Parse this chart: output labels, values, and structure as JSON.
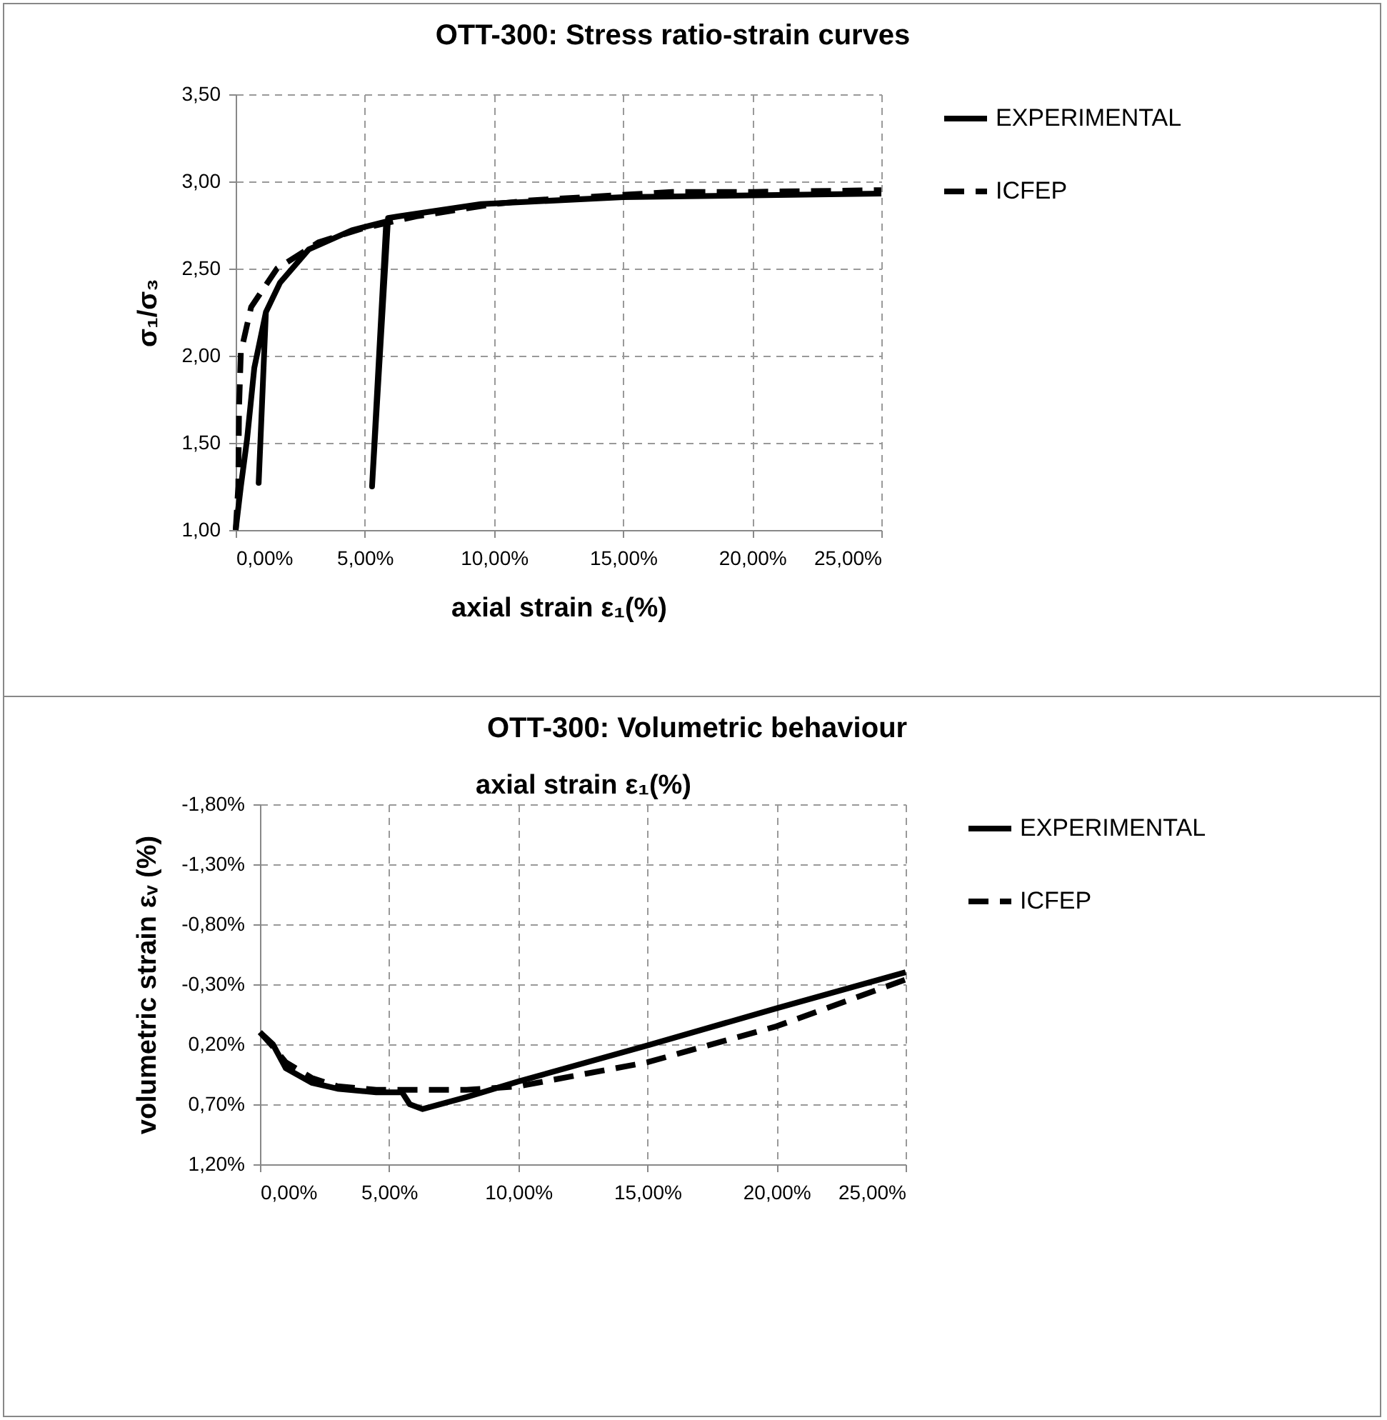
{
  "chart_data": [
    {
      "type": "line",
      "title": "OTT-300: Stress ratio-strain curves",
      "xlabel": "axial strain ε₁(%)",
      "ylabel": "σ₁/σ₃",
      "xlim": [
        0,
        25
      ],
      "ylim": [
        1,
        3.5
      ],
      "xticks": [
        {
          "value": 0,
          "label": "0,00%"
        },
        {
          "value": 5,
          "label": "5,00%"
        },
        {
          "value": 10,
          "label": "10,00%"
        },
        {
          "value": 15,
          "label": "15,00%"
        },
        {
          "value": 20,
          "label": "20,00%"
        },
        {
          "value": 25,
          "label": "25,00%"
        }
      ],
      "yticks": [
        {
          "value": 1,
          "label": "1,00"
        },
        {
          "value": 1.5,
          "label": "1,50"
        },
        {
          "value": 2,
          "label": "2,00"
        },
        {
          "value": 2.5,
          "label": "2,50"
        },
        {
          "value": 3,
          "label": "3,00"
        },
        {
          "value": 3.5,
          "label": "3,50"
        }
      ],
      "grid": true,
      "legend": "right",
      "series": [
        {
          "name": "EXPERIMENTAL",
          "color": "#000000",
          "line_style": "solid",
          "x": [
            0,
            0.2,
            0.44,
            0.72,
            1.17,
            0.89,
            1.17,
            1.72,
            2.83,
            4.5,
            5.83,
            5.28,
            5.9,
            6.33,
            9.5,
            15,
            20,
            25
          ],
          "values": [
            1,
            1.25,
            1.52,
            1.93,
            2.25,
            1.27,
            2.25,
            2.42,
            2.61,
            2.72,
            2.77,
            1.25,
            2.79,
            2.8,
            2.87,
            2.91,
            2.92,
            2.93
          ]
        },
        {
          "name": "ICFEP",
          "color": "#000000",
          "line_style": "dashed",
          "x": [
            0,
            0.1,
            0.13,
            0.2,
            0.6,
            1.6,
            3.2,
            4.9,
            7,
            10,
            11.3,
            16.9,
            20,
            25
          ],
          "values": [
            1,
            1.25,
            1.7,
            2.02,
            2.28,
            2.5,
            2.65,
            2.73,
            2.8,
            2.87,
            2.89,
            2.94,
            2.94,
            2.95
          ]
        }
      ]
    },
    {
      "type": "line",
      "title": "OTT-300: Volumetric behaviour",
      "xlabel": "axial strain ε₁(%)",
      "ylabel": "volumetric strain εᵥ (%)",
      "xlim": [
        0,
        25
      ],
      "ylim": [
        1.2,
        -1.8
      ],
      "xticks": [
        {
          "value": 0,
          "label": "0,00%"
        },
        {
          "value": 5,
          "label": "5,00%"
        },
        {
          "value": 10,
          "label": "10,00%"
        },
        {
          "value": 15,
          "label": "15,00%"
        },
        {
          "value": 20,
          "label": "20,00%"
        },
        {
          "value": 25,
          "label": "25,00%"
        }
      ],
      "yticks": [
        {
          "value": -1.8,
          "label": "-1,80%"
        },
        {
          "value": -1.3,
          "label": "-1,30%"
        },
        {
          "value": -0.8,
          "label": "-0,80%"
        },
        {
          "value": -0.3,
          "label": "-0,30%"
        },
        {
          "value": 0.2,
          "label": "0,20%"
        },
        {
          "value": 0.7,
          "label": "0,70%"
        },
        {
          "value": 1.2,
          "label": "1,20%"
        }
      ],
      "grid": true,
      "legend": "right",
      "series": [
        {
          "name": "EXPERIMENTAL",
          "color": "#000000",
          "line_style": "solid",
          "x": [
            0,
            0.5,
            1,
            2,
            3,
            4.5,
            5.5,
            5.8,
            6.3,
            8,
            10,
            15,
            20,
            25
          ],
          "values": [
            0.1,
            0.2,
            0.4,
            0.52,
            0.57,
            0.6,
            0.6,
            0.7,
            0.74,
            0.64,
            0.51,
            0.21,
            -0.1,
            -0.4
          ]
        },
        {
          "name": "ICFEP",
          "color": "#000000",
          "line_style": "dashed",
          "x": [
            0,
            0.5,
            1,
            2,
            3,
            4.5,
            6.5,
            8,
            10,
            15,
            20,
            25
          ],
          "values": [
            0.1,
            0.22,
            0.35,
            0.48,
            0.55,
            0.58,
            0.58,
            0.58,
            0.55,
            0.35,
            0.05,
            -0.34
          ]
        }
      ]
    }
  ]
}
